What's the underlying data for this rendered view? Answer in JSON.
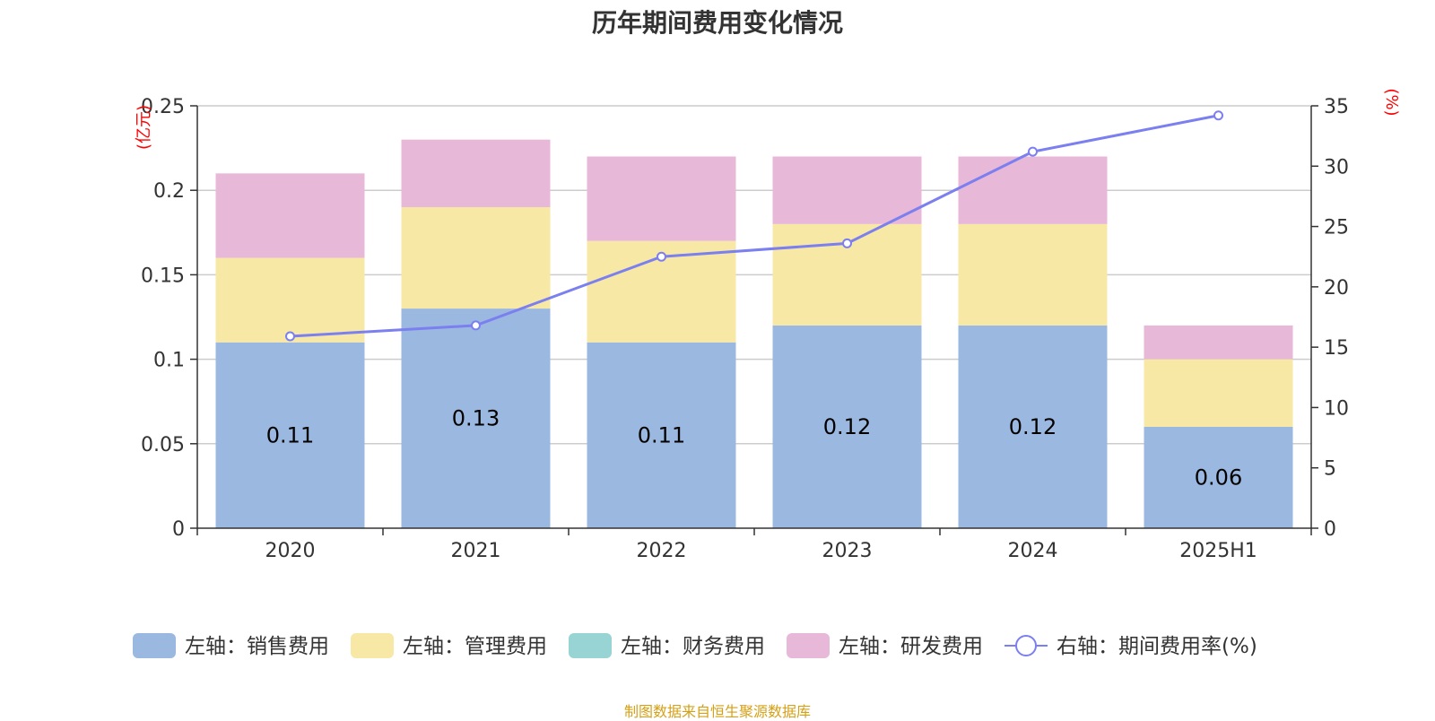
{
  "title": "历年期间费用变化情况",
  "source": "制图数据来自恒生聚源数据库",
  "chart_data": {
    "type": "bar",
    "categories": [
      "2020",
      "2021",
      "2022",
      "2023",
      "2024",
      "2025H1"
    ],
    "left_axis": {
      "unit": "(亿元)",
      "min": 0,
      "max": 0.25,
      "ticks": [
        "0",
        "0.05",
        "0.1",
        "0.15",
        "0.2",
        "0.25"
      ]
    },
    "right_axis": {
      "unit": "(%)",
      "min": 0,
      "max": 35,
      "ticks": [
        "0",
        "5",
        "10",
        "15",
        "20",
        "25",
        "30",
        "35"
      ]
    },
    "series": [
      {
        "name": "左轴：销售费用",
        "color": "#9bb8e0",
        "values": [
          0.11,
          0.13,
          0.11,
          0.12,
          0.12,
          0.06
        ],
        "labels": [
          "0.11",
          "0.13",
          "0.11",
          "0.12",
          "0.12",
          "0.06"
        ]
      },
      {
        "name": "左轴：管理费用",
        "color": "#f7e8a6",
        "values": [
          0.05,
          0.06,
          0.06,
          0.06,
          0.06,
          0.04
        ]
      },
      {
        "name": "左轴：财务费用",
        "color": "#98d4d4",
        "values": [
          0,
          0,
          0,
          0,
          0,
          0
        ]
      },
      {
        "name": "左轴：研发费用",
        "color": "#e8b8d8",
        "values": [
          0.05,
          0.04,
          0.05,
          0.04,
          0.04,
          0.02
        ]
      }
    ],
    "line": {
      "name": "右轴：期间费用率(%)",
      "color": "#7b7fef",
      "axis": "right",
      "values": [
        15.9,
        16.8,
        22.5,
        23.6,
        31.2,
        34.2
      ]
    }
  }
}
